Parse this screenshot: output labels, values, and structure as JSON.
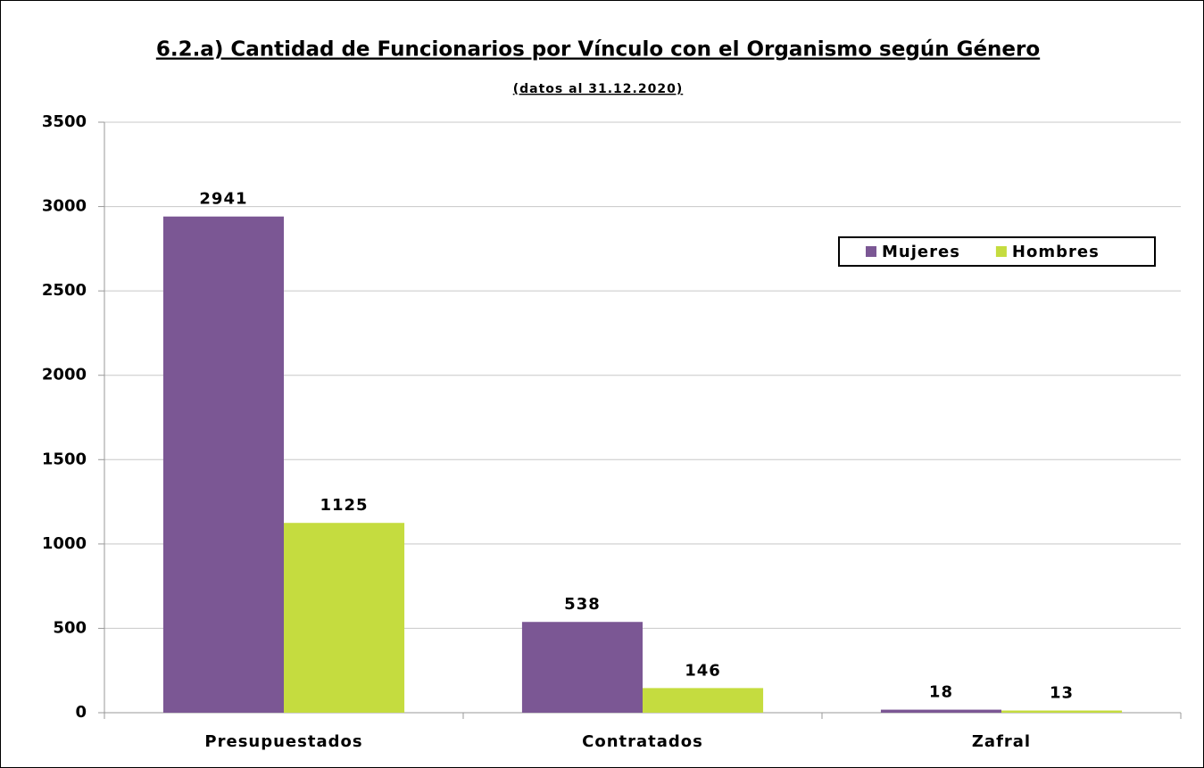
{
  "chart_data": {
    "type": "bar",
    "title": "6.2.a) Cantidad de Funcionarios por Vínculo con el Organismo según Género",
    "subtitle": "(datos al 31.12.2020)",
    "categories": [
      "Presupuestados",
      "Contratados",
      "Zafral"
    ],
    "series": [
      {
        "name": "Mujeres",
        "color": "#7b5794",
        "values": [
          2941,
          538,
          18
        ]
      },
      {
        "name": "Hombres",
        "color": "#c5dc3f",
        "values": [
          1125,
          146,
          13
        ]
      }
    ],
    "ylim": [
      0,
      3500
    ],
    "yticks": [
      0,
      500,
      1000,
      1500,
      2000,
      2500,
      3000,
      3500
    ],
    "grid": true,
    "legend": "upper right"
  }
}
